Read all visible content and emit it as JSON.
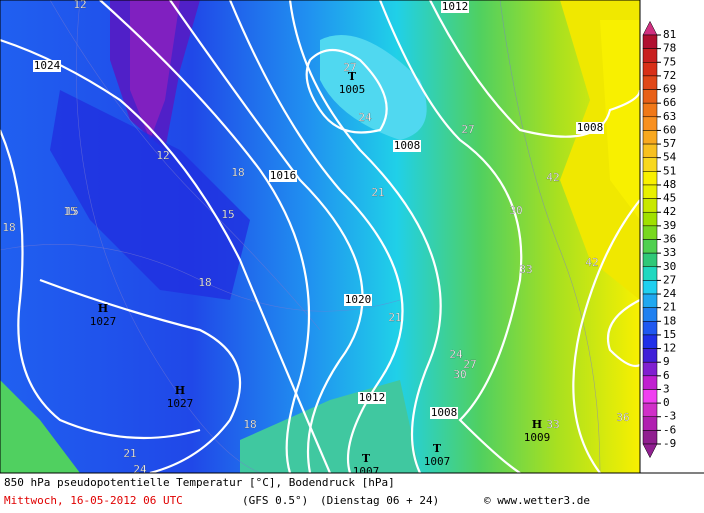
{
  "colorbar": {
    "ticks": [
      81,
      78,
      75,
      72,
      69,
      66,
      63,
      60,
      57,
      54,
      51,
      48,
      45,
      42,
      39,
      36,
      33,
      30,
      27,
      24,
      21,
      18,
      15,
      12,
      9,
      6,
      3,
      0,
      -3,
      -6,
      -9
    ],
    "colors": [
      "#d03080",
      "#b01030",
      "#c82020",
      "#d83018",
      "#e04818",
      "#e86018",
      "#f07818",
      "#f89020",
      "#f8a820",
      "#f8c020",
      "#f8d820",
      "#f8f000",
      "#e8f000",
      "#c8e800",
      "#a0e000",
      "#78d820",
      "#50d050",
      "#30c878",
      "#20d8c0",
      "#20d0f0",
      "#20a8f0",
      "#2080f0",
      "#2058f0",
      "#2030e8",
      "#4020d8",
      "#8020d0",
      "#c020d0",
      "#f040f0",
      "#d030c8",
      "#b020b0",
      "#902090"
    ]
  },
  "map": {
    "isobars": [
      "1024",
      "1016",
      "1020",
      "1012",
      "1008",
      "1008",
      "1008",
      "1012"
    ],
    "centers": [
      {
        "letter": "H",
        "value": "1027"
      },
      {
        "letter": "H",
        "value": "1027"
      },
      {
        "letter": "T",
        "value": "1005"
      },
      {
        "letter": "T",
        "value": "1007"
      },
      {
        "letter": "H",
        "value": "1009"
      },
      {
        "letter": "T",
        "value": "1007"
      }
    ],
    "temps": [
      "12",
      "12",
      "15",
      "18",
      "18",
      "15",
      "18",
      "21",
      "24",
      "27",
      "27",
      "30",
      "42",
      "42",
      "33",
      "21",
      "24",
      "27",
      "30",
      "33",
      "36",
      "21",
      "24",
      "18",
      "15"
    ]
  },
  "footer": {
    "title": "850 hPa pseudopotentielle Temperatur [°C], Bodendruck [hPa]",
    "date": "Mittwoch, 16-05-2012  06 UTC",
    "model": "(GFS 0.5°)",
    "run": "(Dienstag 06 + 24)",
    "credit": "© www.wetter3.de"
  }
}
